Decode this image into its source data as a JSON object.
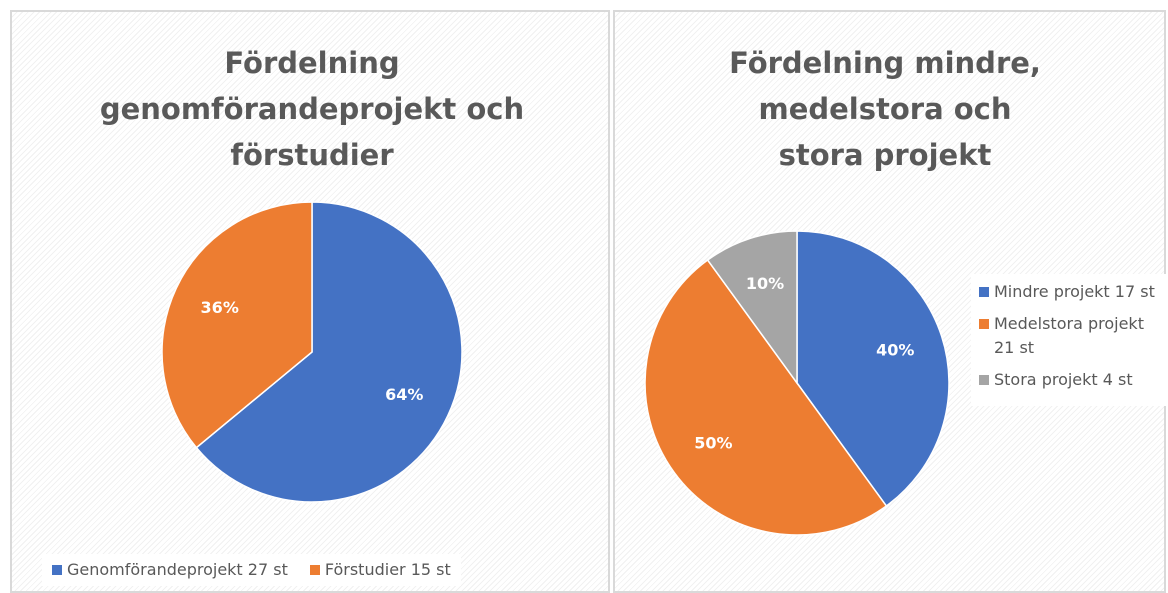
{
  "chart_data": [
    {
      "type": "pie",
      "title": "Fördelning genomförandeprojekt och förstudier",
      "categories": [
        "Genomförandeprojekt 27 st",
        "Förstudier 15 st"
      ],
      "values": [
        64,
        36
      ],
      "value_labels": [
        "64%",
        "36%"
      ],
      "colors": [
        "#4472c4",
        "#ed7d31"
      ],
      "legend": "bottom"
    },
    {
      "type": "pie",
      "title": "Fördelning mindre, medelstora och stora projekt",
      "categories": [
        "Mindre projekt 17 st",
        "Medelstora projekt 21 st",
        "Stora projekt 4 st"
      ],
      "values": [
        40,
        50,
        10
      ],
      "value_labels": [
        "40%",
        "50%",
        "10%"
      ],
      "colors": [
        "#4472c4",
        "#ed7d31",
        "#a5a5a5"
      ],
      "legend": "right"
    }
  ]
}
